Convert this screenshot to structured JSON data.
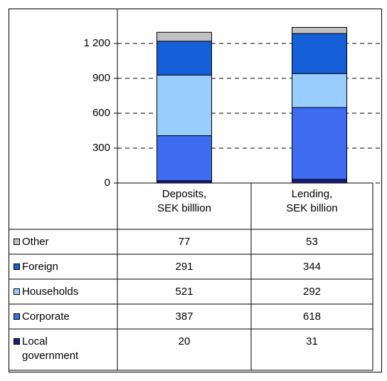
{
  "chart_data": {
    "type": "stacked_bar",
    "categories": [
      "Deposits,\nSEK billlion",
      "Lending,\nSEK billion"
    ],
    "series": [
      {
        "name": "Local\ngovernment",
        "color": "#1c1c80",
        "values": [
          20,
          31
        ]
      },
      {
        "name": "Corporate",
        "color": "#3d6cf0",
        "values": [
          387,
          618
        ]
      },
      {
        "name": "Households",
        "color": "#99ccff",
        "values": [
          521,
          292
        ]
      },
      {
        "name": "Foreign",
        "color": "#1560d8",
        "values": [
          291,
          344
        ]
      },
      {
        "name": "Other",
        "color": "#c0c0c0",
        "values": [
          77,
          53
        ]
      }
    ],
    "ylim": [
      0,
      1500
    ],
    "yticks": [
      0,
      300,
      600,
      900,
      {
        "value": 1200,
        "label": "1 200"
      }
    ],
    "grid": true
  }
}
